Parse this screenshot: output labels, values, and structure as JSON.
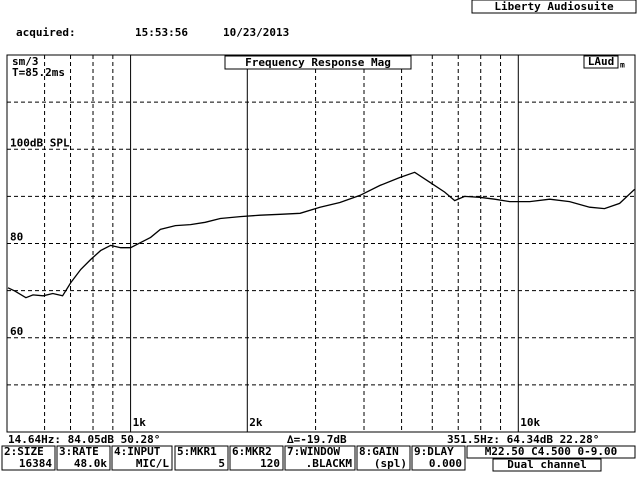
{
  "header": {
    "acquired_label": "acquired:",
    "time": "15:53:56",
    "date": "10/23/2013",
    "app": "Liberty Audiosuite"
  },
  "chart_data": {
    "type": "line",
    "title": "Frequency Response Mag",
    "annotations": [
      "sm/3",
      "T=85.2ms"
    ],
    "badge": "LAud",
    "badge_suffix": "m",
    "xscale": "log",
    "color": "#000000",
    "x": [
      483,
      503,
      537,
      560,
      595,
      630,
      668,
      701,
      744,
      789,
      837,
      888,
      943,
      1000,
      1061,
      1126,
      1194,
      1305,
      1427,
      1558,
      1704,
      1918,
      2159,
      2431,
      2736,
      3080,
      3467,
      3903,
      4394,
      4946,
      5406,
      5910,
      6460,
      6854,
      7271,
      7952,
      8693,
      9503,
      10700,
      12050,
      13560,
      15270,
      16690,
      18250,
      19950
    ],
    "values": [
      70.6,
      69.9,
      68.5,
      69.1,
      68.9,
      69.4,
      68.9,
      71.7,
      74.5,
      76.6,
      78.5,
      79.6,
      79.1,
      79.1,
      80.2,
      81.3,
      83.0,
      83.8,
      84.0,
      84.5,
      85.3,
      85.7,
      86.0,
      86.2,
      86.4,
      87.7,
      88.7,
      90.2,
      92.3,
      94.0,
      95.1,
      93.0,
      90.9,
      89.1,
      90.0,
      89.8,
      89.4,
      88.9,
      88.9,
      89.4,
      88.9,
      87.7,
      87.4,
      88.5,
      91.5
    ],
    "xlim": [
      480,
      20000
    ],
    "ylim": [
      40,
      120
    ],
    "xticks": [
      {
        "value": 1000,
        "label": "1k"
      },
      {
        "value": 2000,
        "label": "2k"
      },
      {
        "value": 10000,
        "label": "10k"
      }
    ],
    "yticks": [
      {
        "value": 100,
        "label": "100dB SPL"
      },
      80,
      60
    ],
    "x_grid": [
      600,
      700,
      800,
      900,
      3000,
      4000,
      5000,
      6000,
      7000,
      8000,
      9000,
      20000
    ],
    "y_grid": [
      50,
      70,
      90,
      110
    ]
  },
  "status": {
    "marker1": "14.64Hz: 84.05dB 50.28°",
    "delta": "∆=-19.7dB",
    "marker2": "351.5Hz: 64.34dB 22.28°"
  },
  "buttons": [
    {
      "label": "2:SIZE",
      "value": "16384"
    },
    {
      "label": "3:RATE",
      "value": "48.0k"
    },
    {
      "label": "4:INPUT",
      "value": "MIC/L"
    },
    {
      "label": "5:MKR1",
      "value": "5"
    },
    {
      "label": "6:MKR2",
      "value": "120"
    },
    {
      "label": "7:WINDOW",
      "value": ".BLACKM"
    },
    {
      "label": "8:GAIN",
      "value": "(spl)"
    },
    {
      "label": "9:DLAY",
      "value": "0.000"
    }
  ],
  "settings": {
    "params": "M22.50 C4.500 0-9.00",
    "mode": "Dual channel"
  }
}
